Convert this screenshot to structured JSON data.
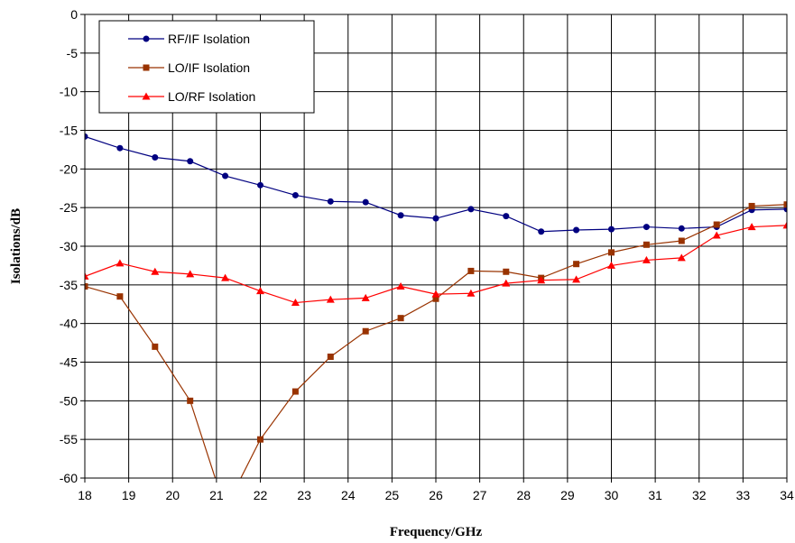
{
  "chart_data": {
    "type": "line",
    "title": "",
    "xlabel": "Frequency/GHz",
    "ylabel": "Isolations/dB",
    "xlim": [
      18,
      34
    ],
    "ylim": [
      -60,
      0
    ],
    "x_ticks": [
      18,
      19,
      20,
      21,
      22,
      23,
      24,
      25,
      26,
      27,
      28,
      29,
      30,
      31,
      32,
      33,
      34
    ],
    "y_ticks": [
      0,
      -5,
      -10,
      -15,
      -20,
      -25,
      -30,
      -35,
      -40,
      -45,
      -50,
      -55,
      -60
    ],
    "grid": true,
    "legend_position": "top-left",
    "x": [
      18,
      18.8,
      19.6,
      20.4,
      21.2,
      22,
      22.8,
      23.6,
      24.4,
      25.2,
      26,
      26.8,
      27.6,
      28.4,
      29.2,
      30,
      30.8,
      31.6,
      32.4,
      33.2,
      34
    ],
    "series": [
      {
        "name": "RF/IF Isolation",
        "color": "#000080",
        "marker": "circle",
        "values": [
          -15.8,
          -17.3,
          -18.5,
          -19.0,
          -20.9,
          -22.1,
          -23.4,
          -24.2,
          -24.3,
          -26.0,
          -26.4,
          -25.2,
          -26.1,
          -28.1,
          -27.9,
          -27.8,
          -27.5,
          -27.7,
          -27.5,
          -25.3,
          -25.2
        ]
      },
      {
        "name": "LO/IF Isolation",
        "color": "#993300",
        "marker": "square",
        "values": [
          -35.2,
          -36.5,
          -43.0,
          -50.0,
          -64.0,
          -55.0,
          -48.8,
          -44.3,
          -41.0,
          -39.3,
          -36.8,
          -33.2,
          -33.3,
          -34.1,
          -32.3,
          -30.8,
          -29.8,
          -29.3,
          -27.2,
          -24.8,
          -24.6
        ]
      },
      {
        "name": "LO/RF Isolation",
        "color": "#ff0000",
        "marker": "triangle",
        "values": [
          -33.9,
          -32.2,
          -33.3,
          -33.6,
          -34.1,
          -35.8,
          -37.3,
          -36.9,
          -36.7,
          -35.2,
          -36.2,
          -36.1,
          -34.8,
          -34.4,
          -34.3,
          -32.5,
          -31.8,
          -31.5,
          -28.6,
          -27.5,
          -27.3
        ]
      }
    ]
  }
}
